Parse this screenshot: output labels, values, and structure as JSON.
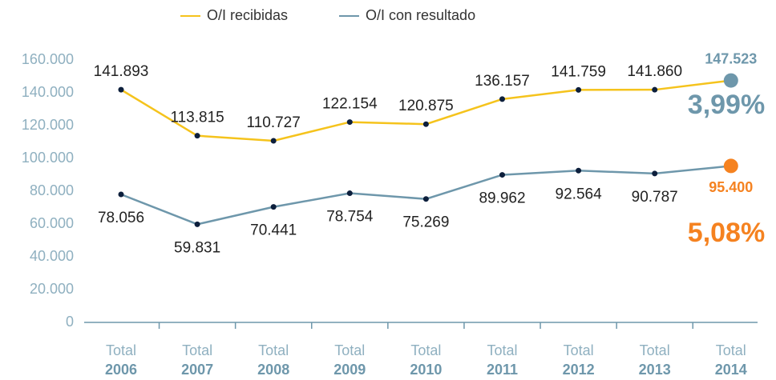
{
  "chart_data": {
    "type": "line",
    "categories": [
      [
        "Total",
        "2006"
      ],
      [
        "Total",
        "2007"
      ],
      [
        "Total",
        "2008"
      ],
      [
        "Total",
        "2009"
      ],
      [
        "Total",
        "2010"
      ],
      [
        "Total",
        "2011"
      ],
      [
        "Total",
        "2012"
      ],
      [
        "Total",
        "2013"
      ],
      [
        "Total",
        "2014"
      ]
    ],
    "series": [
      {
        "name": "O/I recibidas",
        "color": "#f5c31c",
        "highlight_color": "#6e97ab",
        "values": [
          141893,
          113815,
          110727,
          122154,
          120875,
          136157,
          141759,
          141860,
          147523
        ],
        "value_labels": [
          "141.893",
          "113.815",
          "110.727",
          "122.154",
          "120.875",
          "136.157",
          "141.759",
          "141.860",
          "147.523"
        ]
      },
      {
        "name": "O/I con resultado",
        "color": "#6e97ab",
        "highlight_color": "#f58220",
        "values": [
          78056,
          59831,
          70441,
          78754,
          75269,
          89962,
          92564,
          90787,
          95400
        ],
        "value_labels": [
          "78.056",
          "59.831",
          "70.441",
          "78.754",
          "75.269",
          "89.962",
          "92.564",
          "90.787",
          "95.400"
        ]
      }
    ],
    "annotations": [
      {
        "text": "3,99%",
        "color": "#6e97ab"
      },
      {
        "text": "5,08%",
        "color": "#f58220"
      }
    ],
    "ylim": [
      0,
      160000
    ],
    "yticks": [
      0,
      {
        "value": 20000,
        "label": "20.000"
      },
      {
        "value": 40000,
        "label": "40.000"
      },
      {
        "value": 60000,
        "label": "60.000"
      },
      {
        "value": 80000,
        "label": "80.000"
      },
      {
        "value": 100000,
        "label": "100.000"
      },
      {
        "value": 120000,
        "label": "120.000"
      },
      {
        "value": 140000,
        "label": "140.000"
      },
      {
        "value": 160000,
        "label": "160.000"
      }
    ],
    "grid": false
  }
}
